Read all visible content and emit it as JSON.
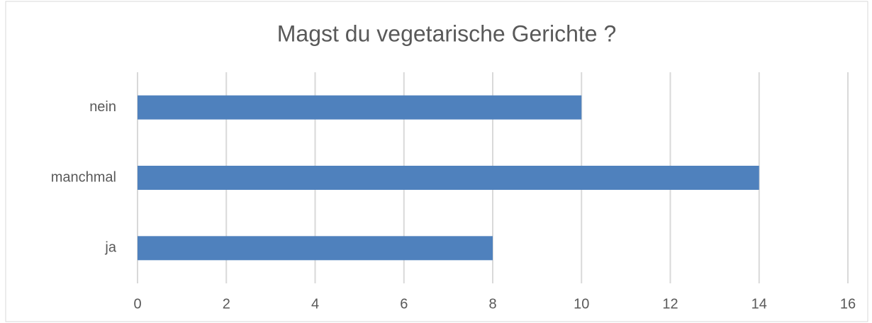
{
  "chart_data": {
    "type": "barh",
    "title": "Magst du vegetarische Gerichte ?",
    "categories": [
      "ja",
      "manchmal",
      "nein"
    ],
    "values": [
      8,
      14,
      10
    ],
    "color": "#4f81bd",
    "xlim": [
      0,
      16
    ],
    "xticks": [
      0,
      2,
      4,
      6,
      8,
      10,
      12,
      14,
      16
    ],
    "grid": true
  }
}
